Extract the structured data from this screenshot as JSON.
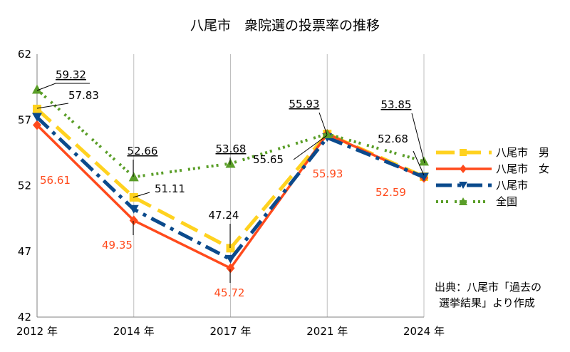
{
  "chart_data": {
    "type": "line",
    "title": "八尾市　衆院選の投票率の推移",
    "categories": [
      "2012 年",
      "2014 年",
      "2017 年",
      "2021 年",
      "2024 年"
    ],
    "ylim": [
      42,
      62
    ],
    "yticks": [
      "42",
      "47",
      "52",
      "57",
      "62"
    ],
    "grid": "vertical",
    "legend_position": "right",
    "series": [
      {
        "name": "八尾市　男",
        "values": [
          57.83,
          51.11,
          47.24,
          55.93,
          52.68
        ],
        "color": "#FFD21F",
        "dash": "26 11",
        "width": 5,
        "marker": "square"
      },
      {
        "name": "八尾市　女",
        "values": [
          56.61,
          49.35,
          45.72,
          55.93,
          52.59
        ],
        "color": "#FF4A1C",
        "dash": "",
        "width": 3.5,
        "marker": "diamond"
      },
      {
        "name": "八尾市",
        "values": [
          57.2,
          50.2,
          46.4,
          55.65,
          52.65
        ],
        "color": "#0B4A8C",
        "dash": "22 8 5 8",
        "width": 5,
        "marker": "triangle-down"
      },
      {
        "name": "全国",
        "values": [
          59.32,
          52.66,
          53.68,
          55.93,
          53.85
        ],
        "color": "#5A9E28",
        "dash": "3 4 3 4 3 9",
        "width": 4,
        "marker": "triangle-up"
      }
    ],
    "annotations": [
      "59.32",
      "57.83",
      "56.61",
      "52.66",
      "51.11",
      "49.35",
      "53.68",
      "47.24",
      "45.72",
      "55.93",
      "55.65",
      "55.93",
      "53.85",
      "52.68",
      "52.59"
    ]
  },
  "source_note": {
    "line1": "出典：八尾市「過去の",
    "line2": "選挙結果」より作成"
  }
}
